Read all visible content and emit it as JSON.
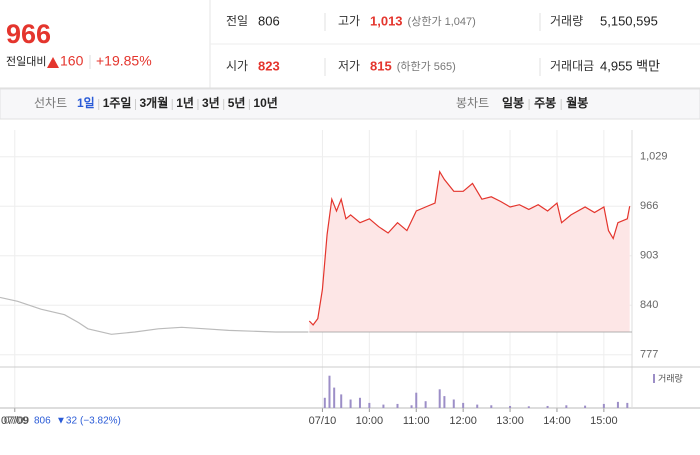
{
  "header": {
    "price": "966",
    "change_label": "전일대비",
    "change": "160",
    "rate": "+19.85%",
    "stats": [
      [
        {
          "label": "전일",
          "value": "806"
        },
        {
          "label": "고가",
          "value": "1,013",
          "note": "(상한가 1,047)"
        },
        {
          "label": "거래량",
          "value": "5,150,595"
        }
      ],
      [
        {
          "label": "시가",
          "value": "823"
        },
        {
          "label": "저가",
          "value": "815",
          "note": "(하한가 565)"
        },
        {
          "label": "거래대금",
          "value": "4,955 백만"
        }
      ]
    ]
  },
  "tabs": {
    "line_label": "선차트",
    "line": [
      "1일",
      "1주일",
      "3개월",
      "1년",
      "3년",
      "5년",
      "10년"
    ],
    "candle_label": "봉차트",
    "candle": [
      "일봉",
      "주봉",
      "월봉"
    ]
  },
  "info": {
    "date": "07/09",
    "price": "806",
    "change": "▼32",
    "rate": "(−3.82%)"
  },
  "chart_data": {
    "type": "line",
    "xlim": [
      2.125,
      15.6
    ],
    "ylim": [
      764,
      1063
    ],
    "yticks": [
      {
        "value": 1029,
        "label": "1,029"
      },
      966,
      903,
      840,
      777
    ],
    "xticks": [
      {
        "value": 2.44,
        "label": "07/09"
      },
      {
        "value": 9,
        "label": "07/10"
      },
      {
        "value": 10,
        "label": "10:00"
      },
      {
        "value": 11,
        "label": "11:00"
      },
      {
        "value": 12,
        "label": "12:00"
      },
      {
        "value": 13,
        "label": "13:00"
      },
      {
        "value": 14,
        "label": "14:00"
      },
      {
        "value": 15,
        "label": "15:00"
      }
    ],
    "base_value": 806,
    "grid": true,
    "series": [
      {
        "color": "#bbbbbb",
        "x": [
          2.125,
          2.5,
          3,
          3.5,
          3.8,
          4,
          4.5,
          5,
          5.5,
          6,
          6.5,
          7,
          7.5,
          8,
          8.7
        ],
        "values": [
          850,
          845,
          835,
          828,
          818,
          810,
          803,
          806,
          810,
          812,
          810,
          808,
          807,
          806,
          806
        ]
      },
      {
        "color": "#e4352d",
        "x": [
          8.72,
          8.8,
          8.9,
          9.0,
          9.1,
          9.2,
          9.3,
          9.4,
          9.5,
          9.6,
          9.8,
          10.0,
          10.2,
          10.4,
          10.6,
          10.8,
          11.0,
          11.2,
          11.4,
          11.5,
          11.6,
          11.8,
          12.0,
          12.2,
          12.4,
          12.6,
          12.8,
          13.0,
          13.2,
          13.4,
          13.6,
          13.8,
          14.0,
          14.1,
          14.3,
          14.6,
          14.8,
          15.0,
          15.1,
          15.2,
          15.3,
          15.5,
          15.55
        ],
        "values": [
          820,
          815,
          823,
          860,
          930,
          975,
          960,
          975,
          950,
          955,
          945,
          950,
          940,
          932,
          945,
          935,
          960,
          965,
          970,
          1010,
          1000,
          985,
          985,
          995,
          975,
          978,
          972,
          965,
          968,
          962,
          968,
          960,
          970,
          945,
          955,
          965,
          958,
          965,
          935,
          925,
          945,
          950,
          966
        ]
      }
    ],
    "volume": {
      "name": "거래량",
      "color": "#9c8ec7",
      "ylim": [
        0,
        100
      ],
      "x": [
        9.05,
        9.15,
        9.25,
        9.4,
        9.6,
        9.8,
        10.0,
        10.3,
        10.6,
        10.9,
        11.0,
        11.2,
        11.5,
        11.6,
        11.8,
        12.0,
        12.3,
        12.6,
        13.0,
        13.4,
        13.8,
        14.2,
        14.6,
        15.0,
        15.3,
        15.5
      ],
      "values": [
        30,
        95,
        60,
        40,
        25,
        30,
        15,
        10,
        12,
        8,
        45,
        20,
        55,
        35,
        25,
        15,
        10,
        8,
        6,
        5,
        6,
        8,
        7,
        12,
        18,
        15
      ]
    }
  }
}
